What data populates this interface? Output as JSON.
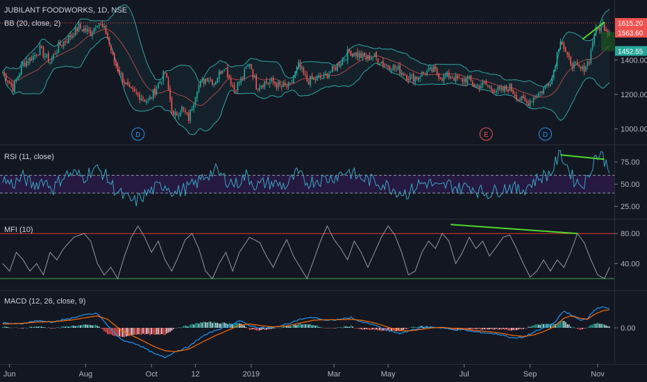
{
  "header": {
    "title": "JUBILANT FOODWORKS, 1D, NSE",
    "bb_label": "BB (20, close, 2)"
  },
  "panels": {
    "rsi_label": "RSI (11, close)",
    "mfi_label": "MFI (10)",
    "macd_label": "MACD (12, 26, close, 9)"
  },
  "colors": {
    "background": "#131722",
    "bull": "#26a69a",
    "bear": "#ef5350",
    "bb_band": "#2fa7a3",
    "bb_basis": "#b04848",
    "rsi_line": "#3aa6c4",
    "rsi_fill": "#2a1a4a",
    "mfi_line": "#9598a1",
    "mfi_upper": "#e53935",
    "mfi_lower": "#43a047",
    "macd_line": "#2196f3",
    "signal_line": "#ff6d00",
    "divergence": "#4cdb2a"
  },
  "chart_data": [
    {
      "type": "candlestick",
      "panel": "price",
      "title": "JUBILANT FOODWORKS, 1D, NSE",
      "overlay": "BB (20, close, 2)",
      "ylim": [
        930,
        1700
      ],
      "yticks": [
        "1000.00",
        "1200.00",
        "1400.00"
      ],
      "price_tags": [
        {
          "text": "1615.20",
          "value": 1615.2,
          "color": "#ef5350"
        },
        {
          "text": "1563.60",
          "value": 1563.6,
          "color": "#ef5350"
        },
        {
          "text": "1452.55",
          "value": 1452.55,
          "color": "#26a69a"
        }
      ],
      "reference_line": 1615.2,
      "close_anchors": [
        [
          0,
          1330
        ],
        [
          6,
          1240
        ],
        [
          12,
          1380
        ],
        [
          18,
          1420
        ],
        [
          22,
          1460
        ],
        [
          28,
          1390
        ],
        [
          33,
          1480
        ],
        [
          38,
          1520
        ],
        [
          45,
          1590
        ],
        [
          52,
          1560
        ],
        [
          56,
          1620
        ],
        [
          61,
          1560
        ],
        [
          66,
          1390
        ],
        [
          70,
          1310
        ],
        [
          75,
          1220
        ],
        [
          80,
          1200
        ],
        [
          86,
          1160
        ],
        [
          91,
          1240
        ],
        [
          96,
          1330
        ],
        [
          101,
          1070
        ],
        [
          106,
          1120
        ],
        [
          110,
          1060
        ],
        [
          115,
          1240
        ],
        [
          121,
          1300
        ],
        [
          125,
          1270
        ],
        [
          131,
          1370
        ],
        [
          137,
          1230
        ],
        [
          142,
          1300
        ],
        [
          146,
          1390
        ],
        [
          150,
          1250
        ],
        [
          155,
          1270
        ],
        [
          160,
          1270
        ],
        [
          165,
          1240
        ],
        [
          170,
          1250
        ],
        [
          175,
          1370
        ],
        [
          180,
          1280
        ],
        [
          185,
          1290
        ],
        [
          190,
          1300
        ],
        [
          195,
          1340
        ],
        [
          200,
          1390
        ],
        [
          205,
          1450
        ],
        [
          210,
          1430
        ],
        [
          215,
          1410
        ],
        [
          220,
          1420
        ],
        [
          225,
          1380
        ],
        [
          230,
          1360
        ],
        [
          235,
          1340
        ],
        [
          240,
          1300
        ],
        [
          245,
          1300
        ],
        [
          250,
          1330
        ],
        [
          255,
          1340
        ],
        [
          260,
          1300
        ],
        [
          265,
          1310
        ],
        [
          270,
          1280
        ],
        [
          275,
          1290
        ],
        [
          280,
          1250
        ],
        [
          285,
          1260
        ],
        [
          290,
          1230
        ],
        [
          295,
          1220
        ],
        [
          300,
          1240
        ],
        [
          305,
          1180
        ],
        [
          310,
          1150
        ],
        [
          315,
          1190
        ],
        [
          320,
          1230
        ],
        [
          325,
          1300
        ],
        [
          330,
          1530
        ],
        [
          334,
          1410
        ],
        [
          338,
          1370
        ],
        [
          343,
          1340
        ],
        [
          347,
          1400
        ],
        [
          350,
          1560
        ],
        [
          355,
          1610
        ],
        [
          358,
          1565
        ]
      ],
      "events": [
        {
          "label": "D",
          "bar": 80,
          "color": "#2196f3"
        },
        {
          "label": "E",
          "bar": 286,
          "color": "#ef5350"
        },
        {
          "label": "D",
          "bar": 321,
          "color": "#2196f3"
        }
      ],
      "divergence": [
        [
          343,
          1520
        ],
        [
          356,
          1620
        ]
      ]
    },
    {
      "type": "line",
      "panel": "rsi",
      "title": "RSI (11, close)",
      "ylim": [
        15,
        90
      ],
      "yticks": [
        "75.00",
        "50.00",
        "25.00"
      ],
      "band": [
        40,
        60
      ],
      "anchors": [
        [
          0,
          55
        ],
        [
          6,
          50
        ],
        [
          12,
          58
        ],
        [
          18,
          48
        ],
        [
          24,
          55
        ],
        [
          30,
          45
        ],
        [
          36,
          60
        ],
        [
          42,
          62
        ],
        [
          48,
          58
        ],
        [
          54,
          68
        ],
        [
          60,
          62
        ],
        [
          66,
          45
        ],
        [
          72,
          35
        ],
        [
          78,
          30
        ],
        [
          84,
          38
        ],
        [
          90,
          45
        ],
        [
          96,
          50
        ],
        [
          102,
          40
        ],
        [
          108,
          45
        ],
        [
          114,
          50
        ],
        [
          120,
          60
        ],
        [
          126,
          65
        ],
        [
          132,
          55
        ],
        [
          138,
          50
        ],
        [
          144,
          60
        ],
        [
          150,
          48
        ],
        [
          156,
          52
        ],
        [
          162,
          50
        ],
        [
          168,
          48
        ],
        [
          174,
          62
        ],
        [
          180,
          52
        ],
        [
          186,
          55
        ],
        [
          192,
          56
        ],
        [
          198,
          60
        ],
        [
          204,
          65
        ],
        [
          210,
          58
        ],
        [
          216,
          55
        ],
        [
          222,
          52
        ],
        [
          228,
          48
        ],
        [
          234,
          42
        ],
        [
          240,
          40
        ],
        [
          246,
          50
        ],
        [
          252,
          52
        ],
        [
          258,
          45
        ],
        [
          264,
          50
        ],
        [
          270,
          45
        ],
        [
          276,
          48
        ],
        [
          282,
          42
        ],
        [
          288,
          40
        ],
        [
          294,
          44
        ],
        [
          300,
          48
        ],
        [
          306,
          42
        ],
        [
          312,
          50
        ],
        [
          318,
          58
        ],
        [
          324,
          62
        ],
        [
          330,
          85
        ],
        [
          334,
          70
        ],
        [
          338,
          55
        ],
        [
          342,
          50
        ],
        [
          346,
          55
        ],
        [
          350,
          80
        ],
        [
          354,
          84
        ],
        [
          358,
          70
        ]
      ],
      "divergence": [
        [
          330,
          83
        ],
        [
          356,
          78
        ]
      ]
    },
    {
      "type": "line",
      "panel": "mfi",
      "title": "MFI (10)",
      "ylim": [
        10,
        95
      ],
      "yticks": [
        "80.00",
        "40.00"
      ],
      "upper": 80,
      "lower": 20,
      "anchors": [
        [
          0,
          40
        ],
        [
          4,
          30
        ],
        [
          8,
          55
        ],
        [
          12,
          45
        ],
        [
          16,
          30
        ],
        [
          20,
          40
        ],
        [
          24,
          25
        ],
        [
          28,
          55
        ],
        [
          32,
          45
        ],
        [
          36,
          60
        ],
        [
          42,
          75
        ],
        [
          48,
          80
        ],
        [
          52,
          70
        ],
        [
          56,
          40
        ],
        [
          60,
          25
        ],
        [
          64,
          35
        ],
        [
          68,
          20
        ],
        [
          72,
          50
        ],
        [
          76,
          75
        ],
        [
          80,
          90
        ],
        [
          84,
          75
        ],
        [
          88,
          55
        ],
        [
          92,
          70
        ],
        [
          96,
          45
        ],
        [
          100,
          30
        ],
        [
          104,
          50
        ],
        [
          108,
          72
        ],
        [
          112,
          80
        ],
        [
          116,
          60
        ],
        [
          120,
          30
        ],
        [
          124,
          20
        ],
        [
          128,
          40
        ],
        [
          132,
          55
        ],
        [
          136,
          30
        ],
        [
          140,
          55
        ],
        [
          146,
          75
        ],
        [
          152,
          68
        ],
        [
          156,
          50
        ],
        [
          160,
          35
        ],
        [
          164,
          55
        ],
        [
          168,
          72
        ],
        [
          172,
          50
        ],
        [
          176,
          35
        ],
        [
          180,
          20
        ],
        [
          184,
          45
        ],
        [
          188,
          70
        ],
        [
          192,
          90
        ],
        [
          196,
          72
        ],
        [
          200,
          60
        ],
        [
          204,
          45
        ],
        [
          208,
          70
        ],
        [
          212,
          55
        ],
        [
          216,
          35
        ],
        [
          220,
          55
        ],
        [
          224,
          75
        ],
        [
          228,
          90
        ],
        [
          232,
          78
        ],
        [
          236,
          55
        ],
        [
          240,
          25
        ],
        [
          244,
          30
        ],
        [
          248,
          55
        ],
        [
          252,
          70
        ],
        [
          256,
          60
        ],
        [
          260,
          80
        ],
        [
          264,
          70
        ],
        [
          268,
          40
        ],
        [
          272,
          55
        ],
        [
          276,
          75
        ],
        [
          280,
          60
        ],
        [
          284,
          70
        ],
        [
          288,
          50
        ],
        [
          292,
          62
        ],
        [
          296,
          75
        ],
        [
          300,
          78
        ],
        [
          304,
          60
        ],
        [
          308,
          40
        ],
        [
          312,
          22
        ],
        [
          316,
          30
        ],
        [
          320,
          45
        ],
        [
          324,
          30
        ],
        [
          328,
          45
        ],
        [
          332,
          35
        ],
        [
          336,
          55
        ],
        [
          340,
          80
        ],
        [
          344,
          68
        ],
        [
          348,
          45
        ],
        [
          352,
          25
        ],
        [
          356,
          20
        ],
        [
          359,
          35
        ]
      ],
      "divergence": [
        [
          265,
          92
        ],
        [
          340,
          80
        ]
      ]
    },
    {
      "type": "line+bar",
      "panel": "macd",
      "title": "MACD (12, 26, close, 9)",
      "ylim": [
        -70,
        70
      ],
      "yticks": [
        "0.00"
      ],
      "macd_anchors": [
        [
          0,
          10
        ],
        [
          10,
          8
        ],
        [
          20,
          15
        ],
        [
          30,
          12
        ],
        [
          40,
          20
        ],
        [
          50,
          28
        ],
        [
          56,
          30
        ],
        [
          62,
          5
        ],
        [
          70,
          -25
        ],
        [
          80,
          -35
        ],
        [
          90,
          -55
        ],
        [
          96,
          -62
        ],
        [
          102,
          -50
        ],
        [
          110,
          -40
        ],
        [
          118,
          -18
        ],
        [
          126,
          -5
        ],
        [
          134,
          5
        ],
        [
          140,
          15
        ],
        [
          146,
          5
        ],
        [
          152,
          0
        ],
        [
          160,
          0
        ],
        [
          168,
          8
        ],
        [
          176,
          18
        ],
        [
          184,
          22
        ],
        [
          192,
          15
        ],
        [
          200,
          18
        ],
        [
          206,
          22
        ],
        [
          212,
          12
        ],
        [
          218,
          8
        ],
        [
          224,
          0
        ],
        [
          230,
          -8
        ],
        [
          236,
          -12
        ],
        [
          242,
          -4
        ],
        [
          248,
          0
        ],
        [
          254,
          2
        ],
        [
          260,
          0
        ],
        [
          266,
          -4
        ],
        [
          272,
          -4
        ],
        [
          278,
          -8
        ],
        [
          284,
          -10
        ],
        [
          290,
          -12
        ],
        [
          296,
          -15
        ],
        [
          302,
          -22
        ],
        [
          308,
          -20
        ],
        [
          314,
          -10
        ],
        [
          320,
          0
        ],
        [
          326,
          10
        ],
        [
          332,
          35
        ],
        [
          336,
          28
        ],
        [
          342,
          15
        ],
        [
          346,
          20
        ],
        [
          350,
          38
        ],
        [
          355,
          45
        ],
        [
          359,
          40
        ]
      ],
      "signal_anchors": [
        [
          0,
          8
        ],
        [
          10,
          9
        ],
        [
          20,
          12
        ],
        [
          30,
          13
        ],
        [
          40,
          16
        ],
        [
          50,
          22
        ],
        [
          56,
          25
        ],
        [
          62,
          18
        ],
        [
          70,
          -5
        ],
        [
          80,
          -22
        ],
        [
          90,
          -40
        ],
        [
          96,
          -48
        ],
        [
          102,
          -50
        ],
        [
          110,
          -45
        ],
        [
          118,
          -30
        ],
        [
          126,
          -16
        ],
        [
          134,
          -4
        ],
        [
          140,
          5
        ],
        [
          146,
          8
        ],
        [
          152,
          5
        ],
        [
          160,
          2
        ],
        [
          168,
          4
        ],
        [
          176,
          10
        ],
        [
          184,
          16
        ],
        [
          192,
          17
        ],
        [
          200,
          17
        ],
        [
          206,
          18
        ],
        [
          212,
          16
        ],
        [
          218,
          12
        ],
        [
          224,
          6
        ],
        [
          230,
          -1
        ],
        [
          236,
          -6
        ],
        [
          242,
          -6
        ],
        [
          248,
          -3
        ],
        [
          254,
          0
        ],
        [
          260,
          1
        ],
        [
          266,
          -1
        ],
        [
          272,
          -2
        ],
        [
          278,
          -5
        ],
        [
          284,
          -7
        ],
        [
          290,
          -9
        ],
        [
          296,
          -12
        ],
        [
          302,
          -16
        ],
        [
          308,
          -18
        ],
        [
          314,
          -15
        ],
        [
          320,
          -8
        ],
        [
          326,
          2
        ],
        [
          332,
          20
        ],
        [
          336,
          25
        ],
        [
          342,
          20
        ],
        [
          346,
          18
        ],
        [
          350,
          28
        ],
        [
          355,
          36
        ],
        [
          359,
          38
        ]
      ]
    }
  ],
  "x_axis": {
    "bars": 360,
    "labels": [
      {
        "text": "Jun",
        "bar": 4
      },
      {
        "text": "Aug",
        "bar": 49
      },
      {
        "text": "Oct",
        "bar": 88
      },
      {
        "text": "12",
        "bar": 114
      },
      {
        "text": "2019",
        "bar": 147
      },
      {
        "text": "Mar",
        "bar": 196
      },
      {
        "text": "May",
        "bar": 228
      },
      {
        "text": "Jul",
        "bar": 273
      },
      {
        "text": "Sep",
        "bar": 312
      },
      {
        "text": "Nov",
        "bar": 352
      }
    ]
  }
}
